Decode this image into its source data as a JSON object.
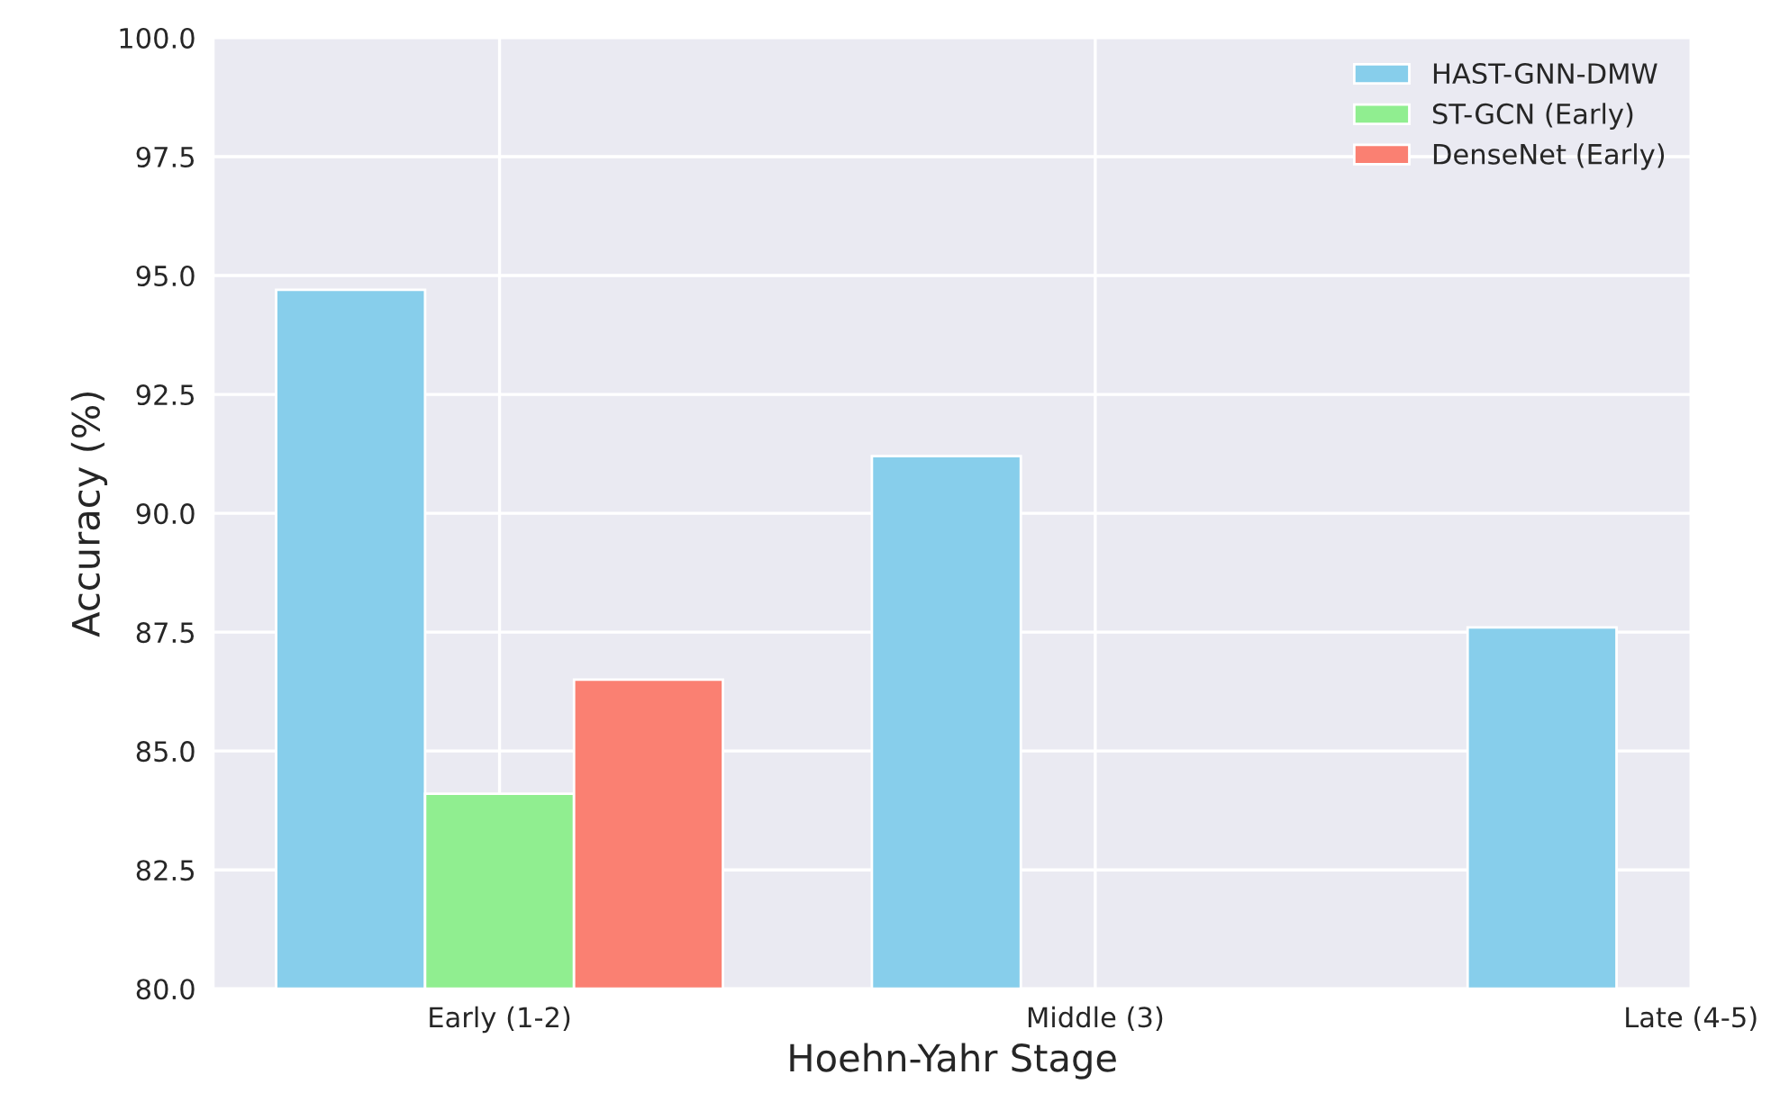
{
  "chart_data": {
    "type": "bar",
    "xlabel": "Hoehn-Yahr Stage",
    "ylabel": "Accuracy (%)",
    "categories": [
      "Early (1-2)",
      "Middle (3)",
      "Late (4-5)"
    ],
    "series": [
      {
        "name": "HAST-GNN-DMW",
        "color": "#87ceeb",
        "values": [
          94.7,
          91.2,
          87.6
        ]
      },
      {
        "name": "ST-GCN (Early)",
        "color": "#90ee90",
        "values": [
          84.1,
          null,
          null
        ]
      },
      {
        "name": "DenseNet (Early)",
        "color": "#fa8072",
        "values": [
          86.5,
          null,
          null
        ]
      }
    ],
    "ylim": [
      80,
      100
    ],
    "yticks": [
      {
        "value": 80,
        "label": "80.0"
      },
      {
        "value": 82.5,
        "label": "82.5"
      },
      {
        "value": 85,
        "label": "85.0"
      },
      {
        "value": 87.5,
        "label": "87.5"
      },
      {
        "value": 90,
        "label": "90.0"
      },
      {
        "value": 92.5,
        "label": "92.5"
      },
      {
        "value": 95,
        "label": "95.0"
      },
      {
        "value": 97.5,
        "label": "97.5"
      },
      {
        "value": 100,
        "label": "100.0"
      }
    ],
    "grid": true,
    "legend": "top right"
  }
}
